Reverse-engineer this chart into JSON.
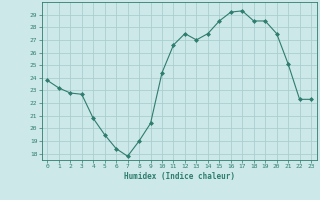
{
  "x": [
    0,
    1,
    2,
    3,
    4,
    5,
    6,
    7,
    8,
    9,
    10,
    11,
    12,
    13,
    14,
    15,
    16,
    17,
    18,
    19,
    20,
    21,
    22,
    23
  ],
  "y": [
    23.8,
    23.2,
    22.8,
    22.7,
    20.8,
    19.5,
    18.4,
    17.8,
    19.0,
    20.4,
    24.4,
    26.6,
    27.5,
    27.0,
    27.5,
    28.5,
    29.2,
    29.3,
    28.5,
    28.5,
    27.5,
    25.1,
    22.3,
    22.3
  ],
  "xlabel": "Humidex (Indice chaleur)",
  "xlim": [
    -0.5,
    23.5
  ],
  "ylim": [
    17.5,
    30.0
  ],
  "yticks": [
    18,
    19,
    20,
    21,
    22,
    23,
    24,
    25,
    26,
    27,
    28,
    29
  ],
  "xticks": [
    0,
    1,
    2,
    3,
    4,
    5,
    6,
    7,
    8,
    9,
    10,
    11,
    12,
    13,
    14,
    15,
    16,
    17,
    18,
    19,
    20,
    21,
    22,
    23
  ],
  "line_color": "#2e7d6e",
  "marker_color": "#2e7d6e",
  "bg_color": "#cce8e8",
  "grid_color": "#aacece",
  "label_color": "#2e7d6e",
  "tick_color": "#2e7d6e",
  "spine_color": "#2e7d6e"
}
